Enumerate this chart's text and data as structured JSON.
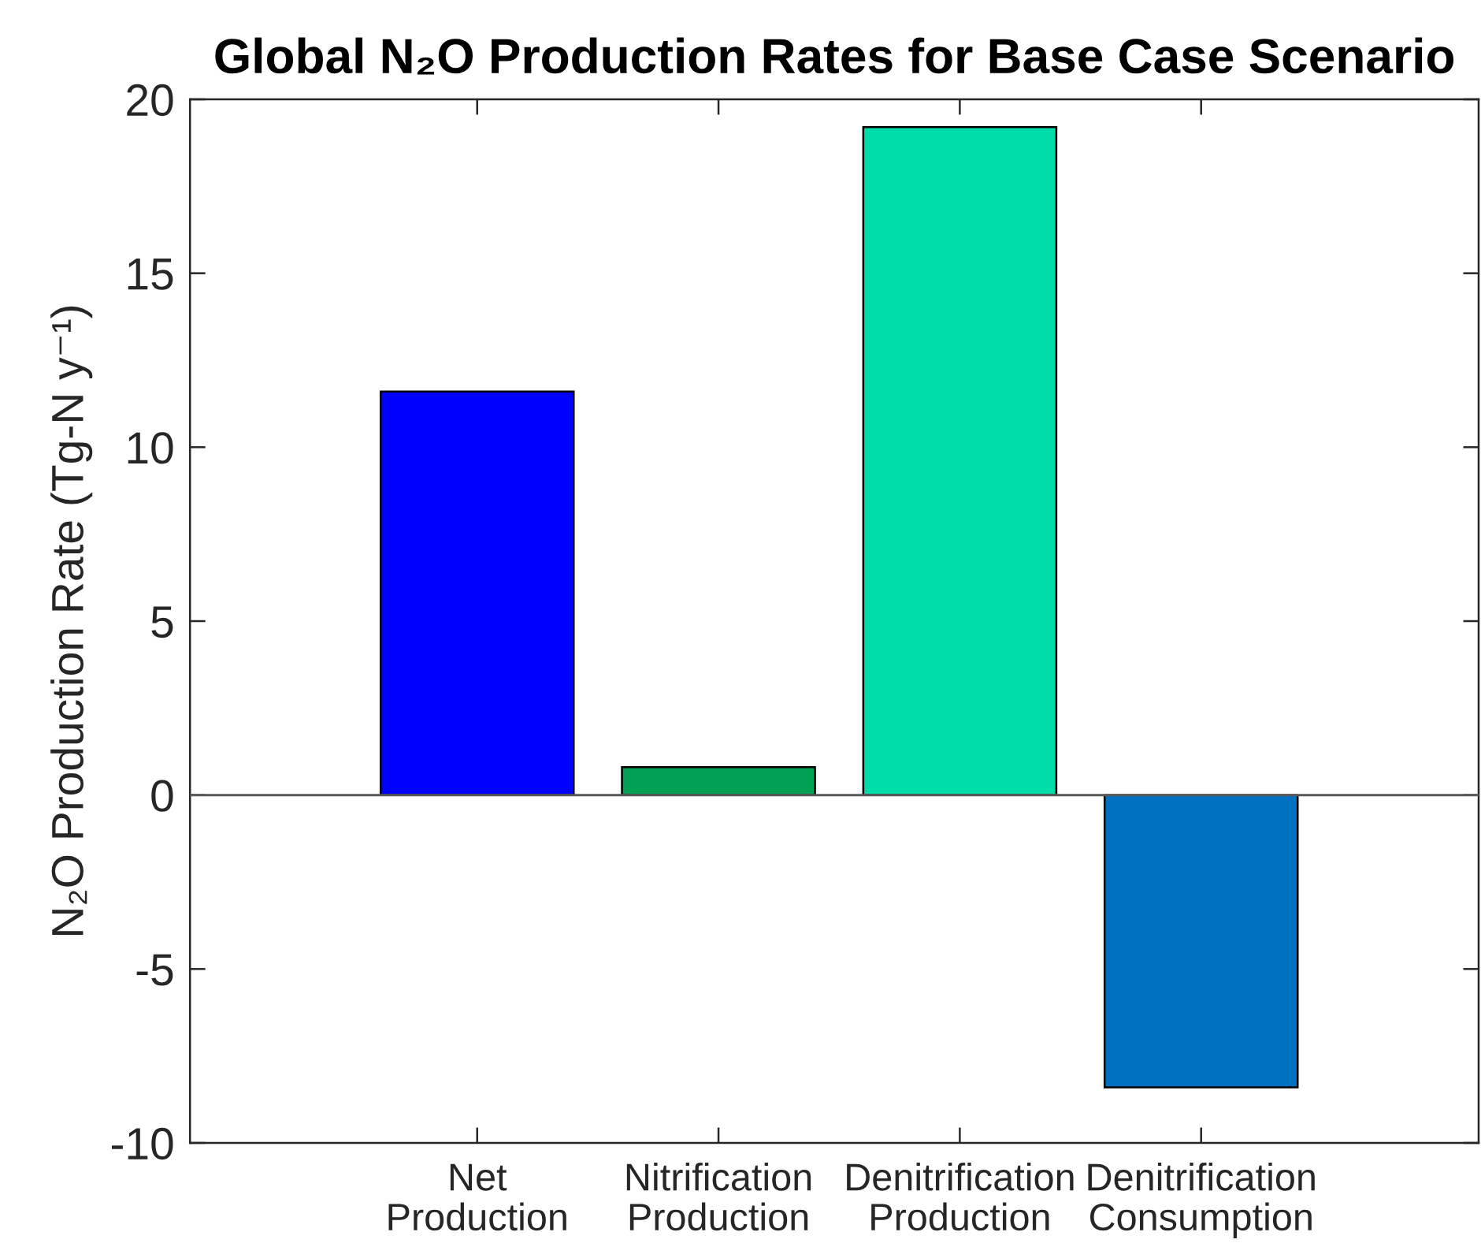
{
  "chart_data": {
    "type": "bar",
    "title": "Global N₂O Production Rates for Base Case Scenario",
    "ylabel": "N₂O Production Rate (Tg-N y⁻¹)",
    "categories": [
      "Net\nProduction",
      "Nitrification\nProduction",
      "Denitrification\nProduction",
      "Denitrification\nConsumption"
    ],
    "values": [
      11.6,
      0.8,
      19.2,
      -8.4
    ],
    "colors": [
      "#0000ff",
      "#00a055",
      "#00ddaa",
      "#0070c0"
    ],
    "ylim": [
      -10,
      20
    ],
    "yticks": [
      -10,
      -5,
      0,
      5,
      10,
      15,
      20
    ],
    "ref_lines": [
      {
        "axis": "y",
        "value": 0,
        "color": "#595959"
      }
    ]
  }
}
